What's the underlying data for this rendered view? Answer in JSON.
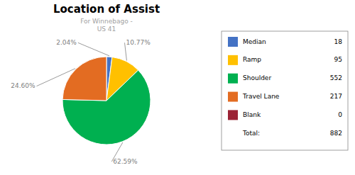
{
  "chart_data": {
    "type": "pie",
    "title": "Location of Assist",
    "subtitle": "For Winnebago -\nUS 41",
    "categories": [
      "Median",
      "Ramp",
      "Shoulder",
      "Travel Lane",
      "Blank"
    ],
    "values": [
      2.04,
      10.77,
      62.59,
      24.6,
      0
    ],
    "value_labels": [
      "2.04%",
      "10.77%",
      "62.59%",
      "24.60%",
      null
    ],
    "colors": [
      "#4472C4",
      "#FFC000",
      "#00B050",
      "#E36C22",
      "#9B2335"
    ],
    "counts": [
      18,
      95,
      552,
      217,
      0
    ],
    "total_label": "Total:",
    "total": 882,
    "data_labels": true,
    "legend": "right"
  }
}
